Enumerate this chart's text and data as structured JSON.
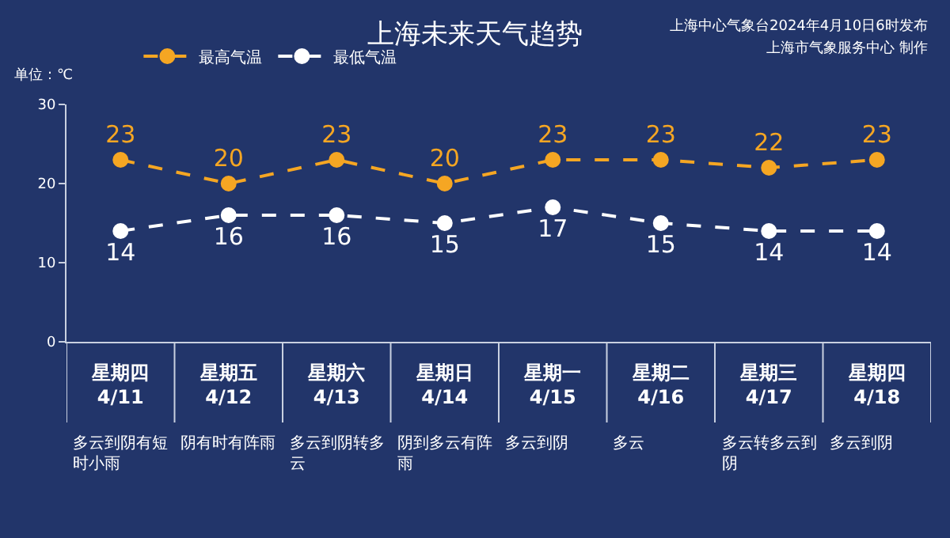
{
  "chart_data": {
    "type": "line",
    "title": "上海未来天气趋势",
    "ylabel": "单位：℃",
    "categories": [
      "星期四\n4/11",
      "星期五\n4/12",
      "星期六\n4/13",
      "星期日\n4/14",
      "星期一\n4/15",
      "星期二\n4/16",
      "星期三\n4/17",
      "星期四\n4/18"
    ],
    "series": [
      {
        "name": "最高气温",
        "color": "#f5a623",
        "values": [
          23,
          20,
          23,
          20,
          23,
          23,
          22,
          23
        ]
      },
      {
        "name": "最低气温",
        "color": "#ffffff",
        "values": [
          14,
          16,
          16,
          15,
          17,
          15,
          14,
          14
        ]
      }
    ],
    "ylim": [
      0,
      30
    ],
    "yticks": [
      0,
      10,
      20,
      30
    ],
    "grid": false,
    "legend": "top left",
    "marker": "circle",
    "line_style": "dashed",
    "data_labels": true,
    "annotations": [
      "上海中心气象台2024年4月10日6时发布",
      "上海市气象服务中心 制作",
      "多云到阴有短时小雨",
      "阴有时有阵雨",
      "多云到阴转多云",
      "阴到多云有阵雨",
      "多云到阴",
      "多云",
      "多云转多云到阴",
      "多云到阴"
    ]
  }
}
